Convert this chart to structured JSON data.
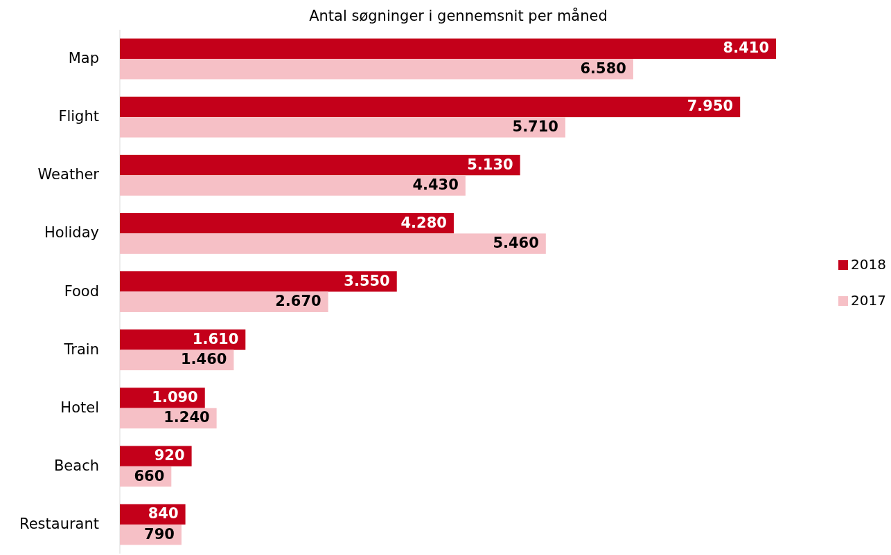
{
  "chart_data": {
    "type": "bar",
    "orientation": "horizontal",
    "title": "Antal søgninger i gennemsnit per måned",
    "categories": [
      "Map",
      "Flight",
      "Weather",
      "Holiday",
      "Food",
      "Train",
      "Hotel",
      "Beach",
      "Restaurant"
    ],
    "series": [
      {
        "name": "2018",
        "color": "#c4001a",
        "values": [
          8410,
          7950,
          5130,
          4280,
          3550,
          1610,
          1090,
          920,
          840
        ],
        "value_labels": [
          "8.410",
          "7.950",
          "5.130",
          "4.280",
          "3.550",
          "1.610",
          "1.090",
          "920",
          "840"
        ]
      },
      {
        "name": "2017",
        "color": "#f6c0c6",
        "values": [
          6580,
          5710,
          4430,
          5460,
          2670,
          1460,
          1240,
          660,
          790
        ],
        "value_labels": [
          "6.580",
          "5.710",
          "4.430",
          "5.460",
          "2.670",
          "1.460",
          "1.240",
          "660",
          "790"
        ]
      }
    ],
    "legend": "right"
  }
}
